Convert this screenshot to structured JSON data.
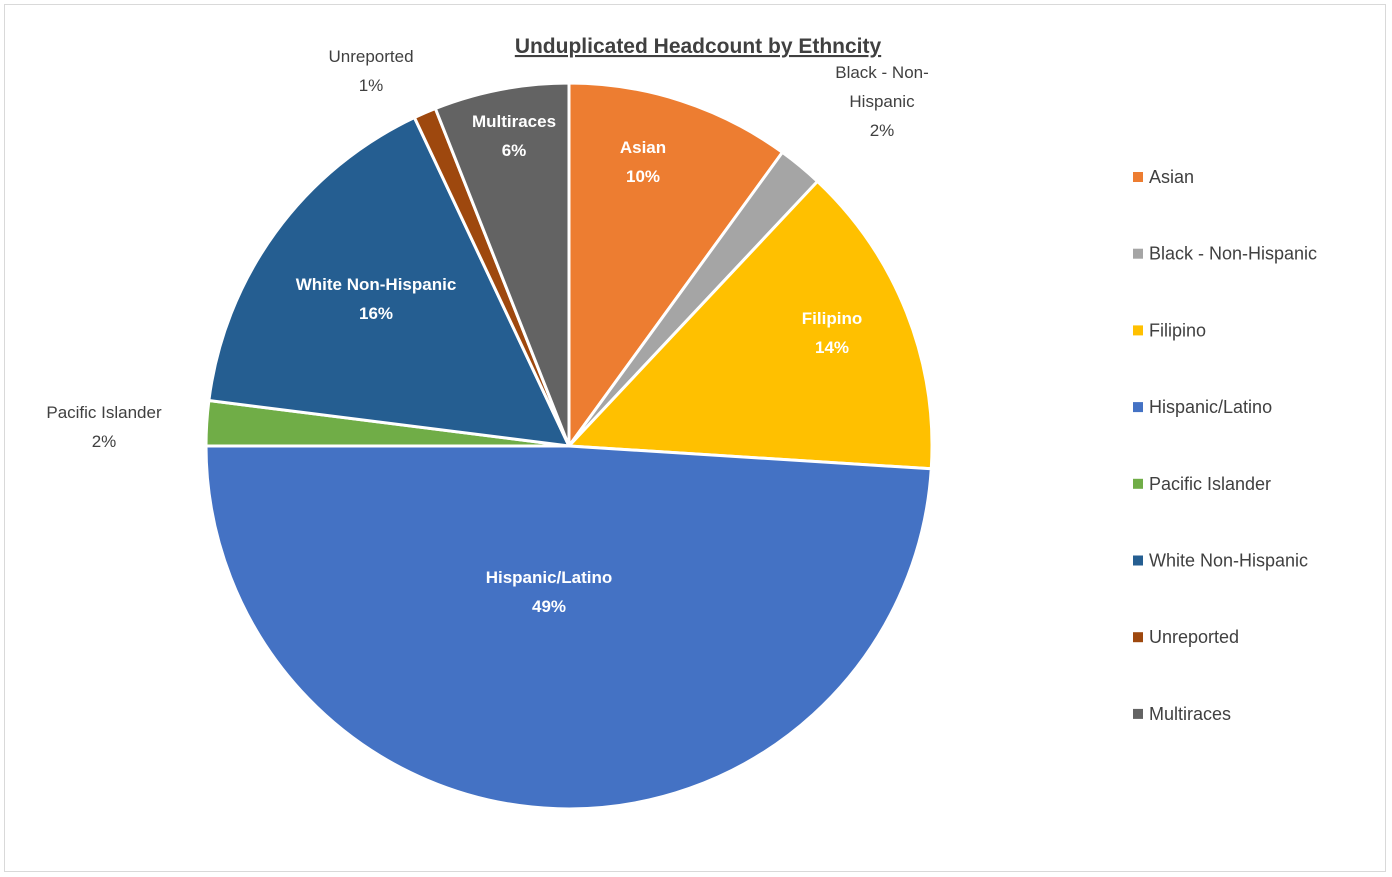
{
  "chart_data": {
    "type": "pie",
    "title": "Unduplicated Headcount by Ethncity",
    "legend_position": "right",
    "slices": [
      {
        "name": "Asian",
        "value": 10,
        "label": "10%",
        "color": "#ED7D31",
        "label_style": "inside"
      },
      {
        "name": "Black - Non-Hispanic",
        "value": 2,
        "label": "2%",
        "color": "#A5A5A5",
        "label_style": "outside",
        "label_lines": [
          "Black - Non-",
          "Hispanic",
          "2%"
        ]
      },
      {
        "name": "Filipino",
        "value": 14,
        "label": "14%",
        "color": "#FFC000",
        "label_style": "inside"
      },
      {
        "name": "Hispanic/Latino",
        "value": 49,
        "label": "49%",
        "color": "#4472C4",
        "label_style": "inside"
      },
      {
        "name": "Pacific Islander",
        "value": 2,
        "label": "2%",
        "color": "#70AD47",
        "label_style": "outside"
      },
      {
        "name": "White Non-Hispanic",
        "value": 16,
        "label": "16%",
        "color": "#255E91",
        "label_style": "inside"
      },
      {
        "name": "Unreported",
        "value": 1,
        "label": "1%",
        "color": "#9E480E",
        "label_style": "outside"
      },
      {
        "name": "Multiraces",
        "value": 6,
        "label": "6%",
        "color": "#636363",
        "label_style": "inside"
      }
    ]
  }
}
